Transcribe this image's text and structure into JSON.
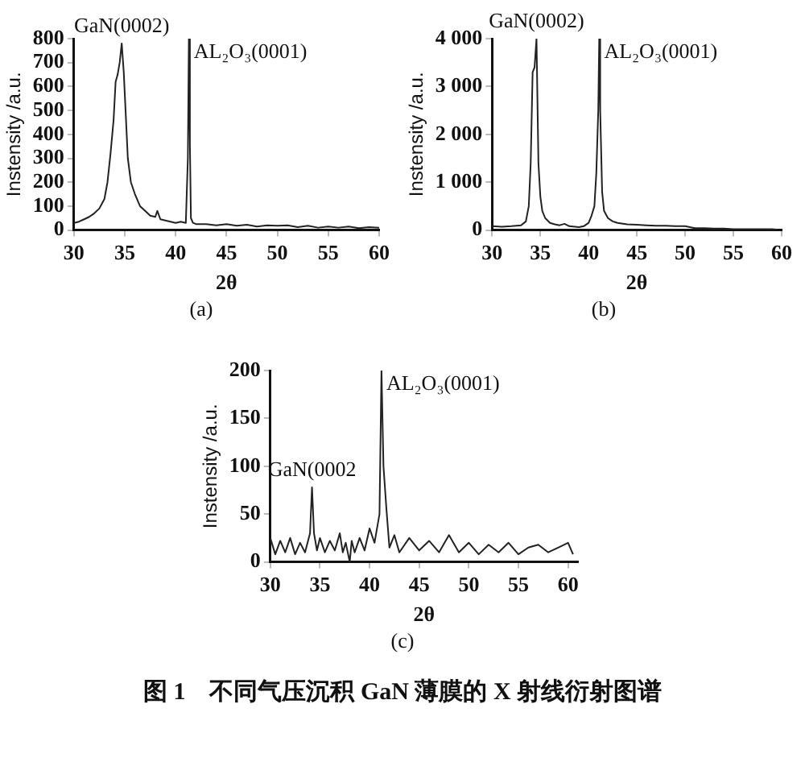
{
  "chart_data": [
    {
      "type": "line",
      "xlabel": "2θ",
      "ylabel": "Instensity /a.u.",
      "xlim": [
        30,
        60
      ],
      "xticks": [
        30,
        35,
        40,
        45,
        50,
        55,
        60
      ],
      "ylim": [
        0,
        800
      ],
      "yticks": [
        0,
        100,
        200,
        300,
        400,
        500,
        600,
        700,
        800
      ],
      "grid": false,
      "legend": false,
      "marker": "none",
      "x": [
        30,
        30.5,
        31,
        31.5,
        32,
        32.5,
        33,
        33.3,
        33.6,
        33.9,
        34.1,
        34.3,
        34.5,
        34.7,
        34.9,
        35.1,
        35.3,
        35.6,
        36,
        36.5,
        37,
        37.5,
        38,
        38.2,
        38.5,
        39,
        39.5,
        40,
        40.5,
        41,
        41.2,
        41.3,
        41.4,
        41.5,
        41.7,
        42,
        43,
        44,
        45,
        46,
        47,
        48,
        49,
        50,
        51,
        52,
        53,
        54,
        55,
        56,
        57,
        58,
        59,
        60
      ],
      "series": [
        {
          "color": "#222222",
          "values": [
            30,
            35,
            45,
            55,
            70,
            90,
            130,
            200,
            320,
            460,
            620,
            650,
            700,
            780,
            660,
            480,
            300,
            200,
            150,
            100,
            80,
            60,
            55,
            80,
            45,
            40,
            35,
            30,
            35,
            30,
            300,
            800,
            360,
            50,
            30,
            25,
            25,
            20,
            25,
            18,
            22,
            15,
            20,
            18,
            20,
            12,
            18,
            10,
            15,
            10,
            15,
            8,
            12,
            10
          ]
        }
      ],
      "annotations": [
        {
          "text": "GaN(0002)",
          "x": 34.7,
          "y": 780
        },
        {
          "text": "AL₂O₃(0001)",
          "x": 41.3,
          "y": 800
        },
        "(a)"
      ]
    },
    {
      "type": "line",
      "xlabel": "2θ",
      "ylabel": "Instensity /a.u.",
      "xlim": [
        30,
        60
      ],
      "xticks": [
        30,
        35,
        40,
        45,
        50,
        55,
        60
      ],
      "ylim": [
        0,
        4000
      ],
      "yticks": [
        0,
        {
          "value": 1000,
          "label": "1 000"
        },
        {
          "value": 2000,
          "label": "2 000"
        },
        {
          "value": 3000,
          "label": "3 000"
        },
        {
          "value": 4000,
          "label": "4 000"
        }
      ],
      "grid": false,
      "legend": false,
      "marker": "none",
      "x": [
        30,
        31,
        32,
        33,
        33.5,
        33.8,
        34,
        34.2,
        34.4,
        34.6,
        34.8,
        35,
        35.2,
        35.5,
        36,
        36.5,
        37,
        37.5,
        38,
        39,
        39.5,
        40,
        40.3,
        40.6,
        40.8,
        41,
        41.1,
        41.2,
        41.4,
        41.6,
        42,
        42.5,
        43,
        44,
        45,
        46,
        47,
        48,
        49,
        50,
        51,
        52,
        53,
        54,
        55,
        56,
        57,
        58,
        59,
        59.5
      ],
      "series": [
        {
          "color": "#222222",
          "values": [
            80,
            70,
            80,
            100,
            180,
            500,
            1400,
            3300,
            3400,
            4000,
            1400,
            700,
            400,
            250,
            150,
            120,
            100,
            130,
            80,
            60,
            80,
            150,
            300,
            500,
            1200,
            2500,
            4000,
            2500,
            800,
            400,
            250,
            180,
            150,
            120,
            110,
            100,
            90,
            90,
            80,
            80,
            40,
            40,
            30,
            30,
            20,
            20,
            20,
            20,
            20,
            10
          ]
        }
      ],
      "annotations": [
        {
          "text": "GaN(0002)",
          "x": 34.6,
          "y": 4000
        },
        {
          "text": "AL₂O₃(0001)",
          "x": 41.1,
          "y": 4000
        },
        "(b)"
      ]
    },
    {
      "type": "line",
      "xlabel": "2θ",
      "ylabel": "Instensity /a.u.",
      "xlim": [
        30,
        61
      ],
      "xticks": [
        30,
        35,
        40,
        45,
        50,
        55,
        60
      ],
      "ylim": [
        0,
        200
      ],
      "yticks": [
        0,
        50,
        100,
        150,
        200
      ],
      "grid": false,
      "legend": false,
      "marker": "none",
      "x": [
        30,
        30.5,
        31,
        31.5,
        32,
        32.5,
        33,
        33.5,
        34,
        34.2,
        34.4,
        34.7,
        35,
        35.5,
        36,
        36.5,
        37,
        37.3,
        37.6,
        38,
        38.2,
        38.5,
        39,
        39.5,
        40,
        40.5,
        41,
        41.2,
        41.4,
        41.7,
        42,
        42.5,
        43,
        44,
        45,
        46,
        47,
        48,
        49,
        50,
        51,
        52,
        53,
        54,
        55,
        56,
        57,
        58,
        59,
        60,
        60.5
      ],
      "series": [
        {
          "color": "#222222",
          "values": [
            25,
            8,
            22,
            10,
            25,
            8,
            20,
            10,
            30,
            78,
            30,
            12,
            25,
            10,
            22,
            12,
            30,
            10,
            20,
            0,
            22,
            10,
            25,
            12,
            35,
            20,
            50,
            200,
            100,
            55,
            15,
            28,
            10,
            25,
            12,
            22,
            10,
            28,
            10,
            20,
            8,
            18,
            10,
            20,
            8,
            15,
            18,
            10,
            15,
            20,
            8
          ]
        }
      ],
      "annotations": [
        {
          "text": "GaN(0002",
          "x": 34.2,
          "y": 78
        },
        {
          "text": "AL₂O₃(0001)",
          "x": 41.2,
          "y": 200
        },
        "(c)",
        "图 1　不同气压沉积 GaN 薄膜的 X 射线衍射图谱"
      ]
    }
  ]
}
